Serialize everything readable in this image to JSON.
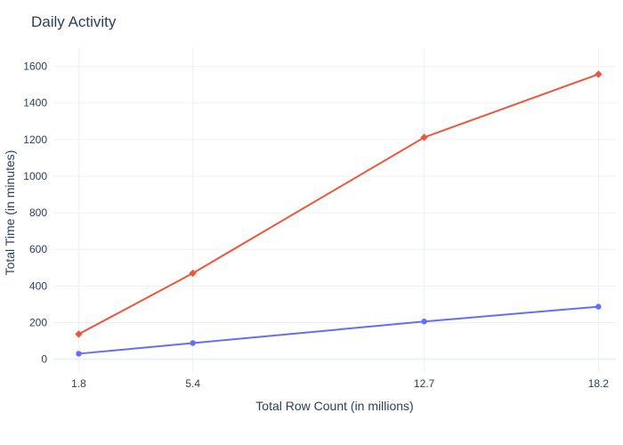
{
  "chart_data": {
    "type": "line",
    "title": "Daily Activity",
    "xlabel": "Total Row Count (in millions)",
    "ylabel": "Total Time (in minutes)",
    "x": [
      1.8,
      5.4,
      12.7,
      18.2
    ],
    "x_tick_labels": [
      "1.8",
      "5.4",
      "12.7",
      "18.2"
    ],
    "y_ticks": [
      0,
      200,
      400,
      600,
      800,
      1000,
      1200,
      1400,
      1600
    ],
    "y_tick_labels": [
      "0",
      "200",
      "400",
      "600",
      "800",
      "1000",
      "1200",
      "1400",
      "1600"
    ],
    "xlim": [
      1.0,
      18.75
    ],
    "ylim": [
      -70,
      1700
    ],
    "grid": true,
    "series": [
      {
        "values": [
          137,
          470,
          1212,
          1557
        ],
        "color": "#EF553B",
        "marker": "diamond"
      },
      {
        "values": [
          30,
          88,
          206,
          287
        ],
        "color": "#636EFA",
        "marker": "circle"
      }
    ]
  }
}
